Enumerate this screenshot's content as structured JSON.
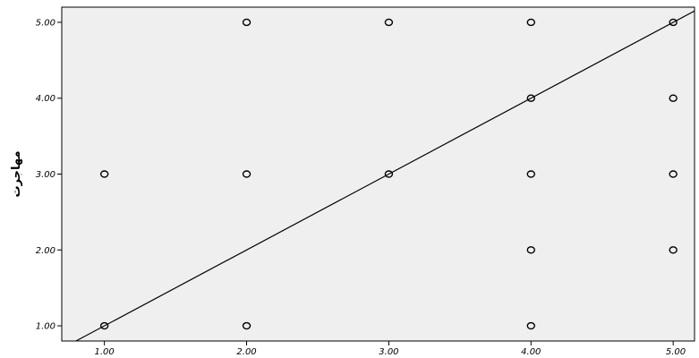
{
  "chart_data": {
    "type": "scatter",
    "ylabel": "مهاجرت",
    "xlabel": "",
    "xlim": [
      0.7,
      5.15
    ],
    "ylim": [
      0.8,
      5.2
    ],
    "x_ticks": [
      "1.00",
      "2.00",
      "3.00",
      "4.00",
      "5.00"
    ],
    "y_ticks": [
      "1.00",
      "2.00",
      "3.00",
      "4.00",
      "5.00"
    ],
    "grid": false,
    "points": [
      {
        "x": 1,
        "y": 1
      },
      {
        "x": 1,
        "y": 3
      },
      {
        "x": 2,
        "y": 1
      },
      {
        "x": 2,
        "y": 3
      },
      {
        "x": 2,
        "y": 5
      },
      {
        "x": 3,
        "y": 3
      },
      {
        "x": 3,
        "y": 5
      },
      {
        "x": 4,
        "y": 1
      },
      {
        "x": 4,
        "y": 2
      },
      {
        "x": 4,
        "y": 3
      },
      {
        "x": 4,
        "y": 4
      },
      {
        "x": 4,
        "y": 5
      },
      {
        "x": 5,
        "y": 2
      },
      {
        "x": 5,
        "y": 3
      },
      {
        "x": 5,
        "y": 4
      },
      {
        "x": 5,
        "y": 5
      }
    ],
    "reference_line": {
      "slope": 1,
      "intercept": 0
    },
    "colors": {
      "plot_background": "#efefef",
      "marker": "#000000",
      "line": "#000000"
    }
  }
}
